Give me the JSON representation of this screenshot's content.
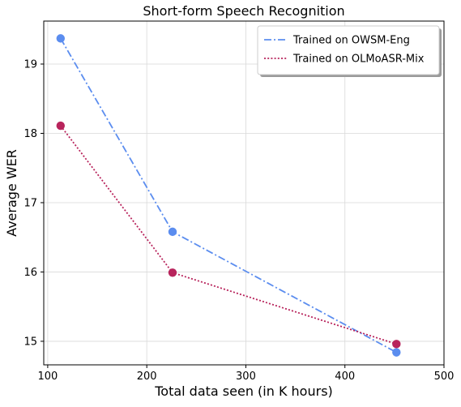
{
  "chart_data": {
    "type": "line",
    "title": "Short-form Speech Recognition",
    "xlabel": "Total data seen (in K hours)",
    "ylabel": "Average WER",
    "xlim": [
      96,
      500
    ],
    "ylim": [
      14.66,
      19.62
    ],
    "x_ticks": [
      100,
      200,
      300,
      400,
      500
    ],
    "y_ticks": [
      15,
      16,
      17,
      18,
      19
    ],
    "grid": true,
    "legend_position": "top-right",
    "series": [
      {
        "name": "Trained on OWSM-Eng",
        "color": "#5b8def",
        "line_style": "dash-dot",
        "marker": "circle",
        "x": [
          113,
          226,
          452
        ],
        "y": [
          19.37,
          16.58,
          14.84
        ]
      },
      {
        "name": "Trained on OLMoASR-Mix",
        "color": "#b8245c",
        "line_style": "dotted",
        "marker": "circle",
        "x": [
          113,
          226,
          452
        ],
        "y": [
          18.11,
          15.99,
          14.96
        ]
      }
    ]
  }
}
